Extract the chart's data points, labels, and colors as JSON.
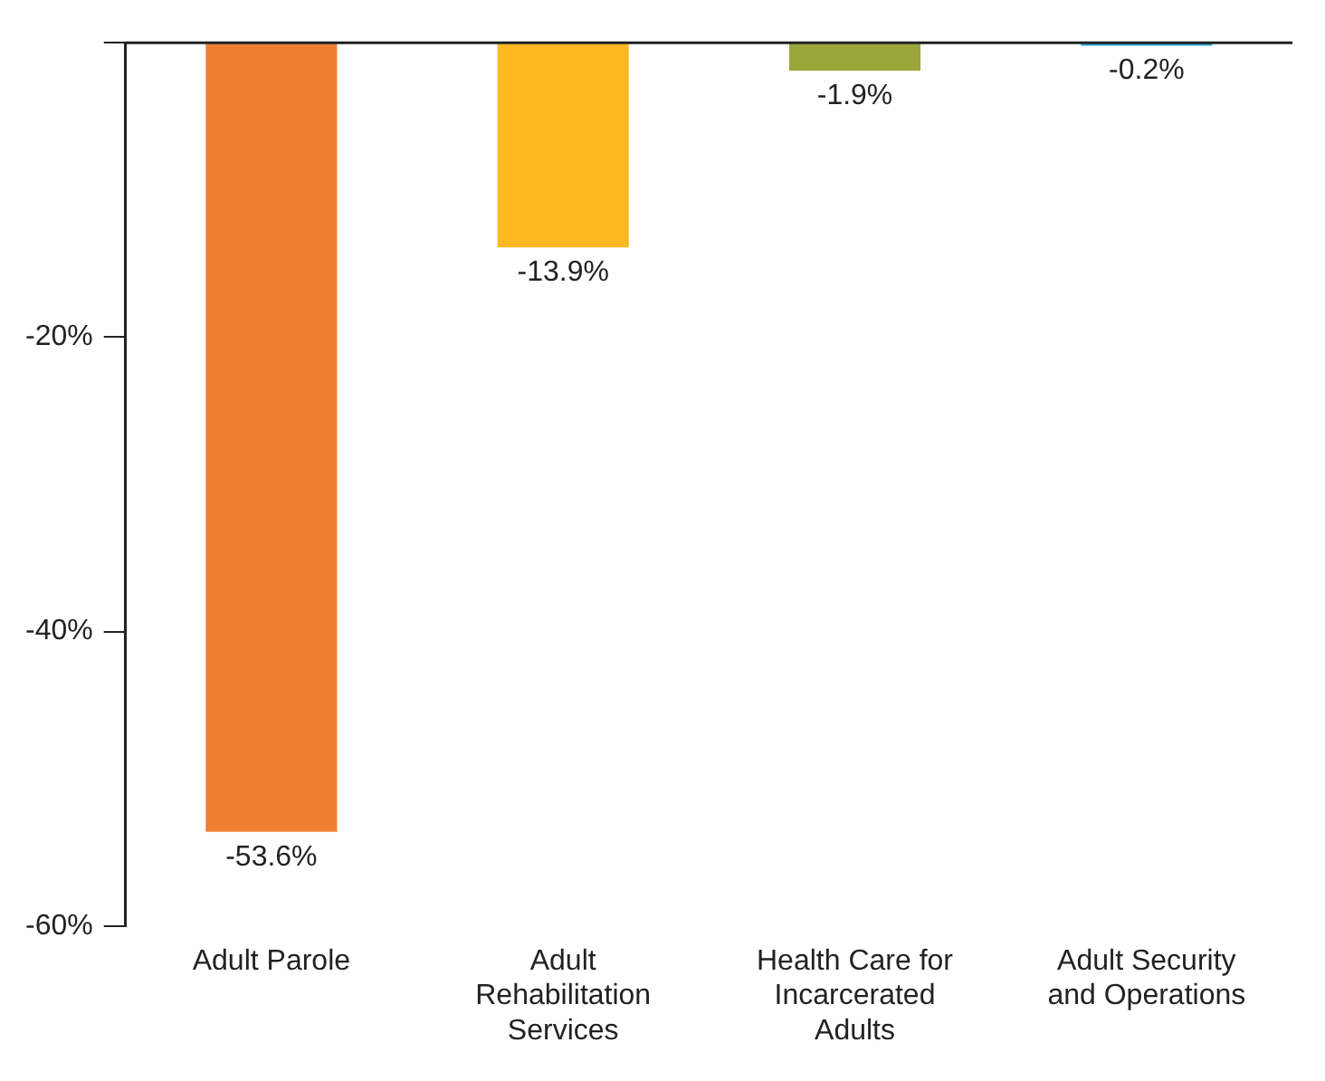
{
  "chart_data": {
    "type": "bar",
    "categories": [
      "Adult Parole",
      "Adult Rehabilitation Services",
      "Health Care for Incarcerated Adults",
      "Adult Security and Operations"
    ],
    "values": [
      -53.6,
      -13.9,
      -1.9,
      -0.2
    ],
    "colors": [
      "#f07f32",
      "#fdb822",
      "#9aa53a",
      "#2ba7d8"
    ],
    "value_labels": [
      "-53.6%",
      "-13.9%",
      "-1.9%",
      "-0.2%"
    ],
    "ylim": [
      -60,
      0
    ],
    "yticks": [
      {
        "value": -60,
        "label": "-60%"
      },
      {
        "value": -40,
        "label": "-40%"
      },
      {
        "value": -20,
        "label": "-20%"
      },
      {
        "value": 0,
        "label": null
      }
    ],
    "grid": false,
    "legend": false
  }
}
